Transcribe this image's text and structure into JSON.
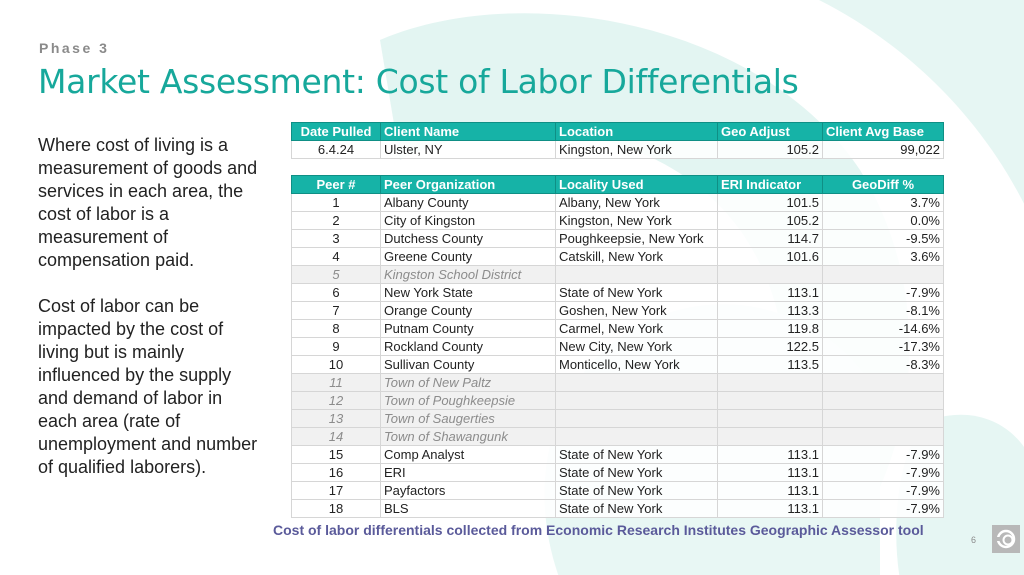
{
  "header": {
    "phase": "Phase 3",
    "title": "Market Assessment: Cost of Labor Differentials"
  },
  "body": {
    "paragraph1": "Where cost of living is a measurement of goods and services in each area, the cost of labor is a measurement of compensation paid.",
    "paragraph2": "Cost of labor can be impacted by the cost of living but is mainly influenced by the supply and demand of labor in each area (rate of unemployment and number of qualified laborers)."
  },
  "client_table": {
    "headers": [
      "Date Pulled",
      "Client Name",
      "Location",
      "Geo Adjust",
      "Client Avg Base"
    ],
    "row": [
      "6.4.24",
      "Ulster, NY",
      "Kingston, New York",
      "105.2",
      "99,022"
    ]
  },
  "peer_table": {
    "headers": [
      "Peer #",
      "Peer Organization",
      "Locality Used",
      "ERI Indicator",
      "GeoDiff %"
    ],
    "rows": [
      {
        "num": "1",
        "org": "Albany County",
        "locality": "Albany, New York",
        "eri": "101.5",
        "diff": "3.7%",
        "excluded": false
      },
      {
        "num": "2",
        "org": "City of Kingston",
        "locality": "Kingston, New York",
        "eri": "105.2",
        "diff": "0.0%",
        "excluded": false
      },
      {
        "num": "3",
        "org": "Dutchess County",
        "locality": "Poughkeepsie, New York",
        "eri": "114.7",
        "diff": "-9.5%",
        "excluded": false
      },
      {
        "num": "4",
        "org": "Greene County",
        "locality": "Catskill, New York",
        "eri": "101.6",
        "diff": "3.6%",
        "excluded": false
      },
      {
        "num": "5",
        "org": "Kingston School District",
        "locality": "",
        "eri": "",
        "diff": "",
        "excluded": true
      },
      {
        "num": "6",
        "org": "New York State",
        "locality": "State of New York",
        "eri": "113.1",
        "diff": "-7.9%",
        "excluded": false
      },
      {
        "num": "7",
        "org": "Orange County",
        "locality": "Goshen, New York",
        "eri": "113.3",
        "diff": "-8.1%",
        "excluded": false
      },
      {
        "num": "8",
        "org": "Putnam County",
        "locality": "Carmel, New York",
        "eri": "119.8",
        "diff": "-14.6%",
        "excluded": false
      },
      {
        "num": "9",
        "org": "Rockland County",
        "locality": "New City, New York",
        "eri": "122.5",
        "diff": "-17.3%",
        "excluded": false
      },
      {
        "num": "10",
        "org": "Sullivan County",
        "locality": "Monticello, New York",
        "eri": "113.5",
        "diff": "-8.3%",
        "excluded": false
      },
      {
        "num": "11",
        "org": "Town of New Paltz",
        "locality": "",
        "eri": "",
        "diff": "",
        "excluded": true
      },
      {
        "num": "12",
        "org": "Town of Poughkeepsie",
        "locality": "",
        "eri": "",
        "diff": "",
        "excluded": true
      },
      {
        "num": "13",
        "org": "Town of Saugerties",
        "locality": "",
        "eri": "",
        "diff": "",
        "excluded": true
      },
      {
        "num": "14",
        "org": "Town of Shawangunk",
        "locality": "",
        "eri": "",
        "diff": "",
        "excluded": true
      },
      {
        "num": "15",
        "org": "Comp Analyst",
        "locality": "State of New York",
        "eri": "113.1",
        "diff": "-7.9%",
        "excluded": false
      },
      {
        "num": "16",
        "org": "ERI",
        "locality": "State of New York",
        "eri": "113.1",
        "diff": "-7.9%",
        "excluded": false
      },
      {
        "num": "17",
        "org": "Payfactors",
        "locality": "State of New York",
        "eri": "113.1",
        "diff": "-7.9%",
        "excluded": false
      },
      {
        "num": "18",
        "org": "BLS",
        "locality": "State of New York",
        "eri": "113.1",
        "diff": "-7.9%",
        "excluded": false
      }
    ]
  },
  "footer": {
    "caption": "Cost of labor differentials collected from Economic Research Institutes Geographic Assessor tool",
    "page_number": "6"
  },
  "colors": {
    "accent": "#17a89b",
    "header_fill": "#16b3a7",
    "caption": "#5a5a9a",
    "background_shape": "#e3f5f2"
  }
}
